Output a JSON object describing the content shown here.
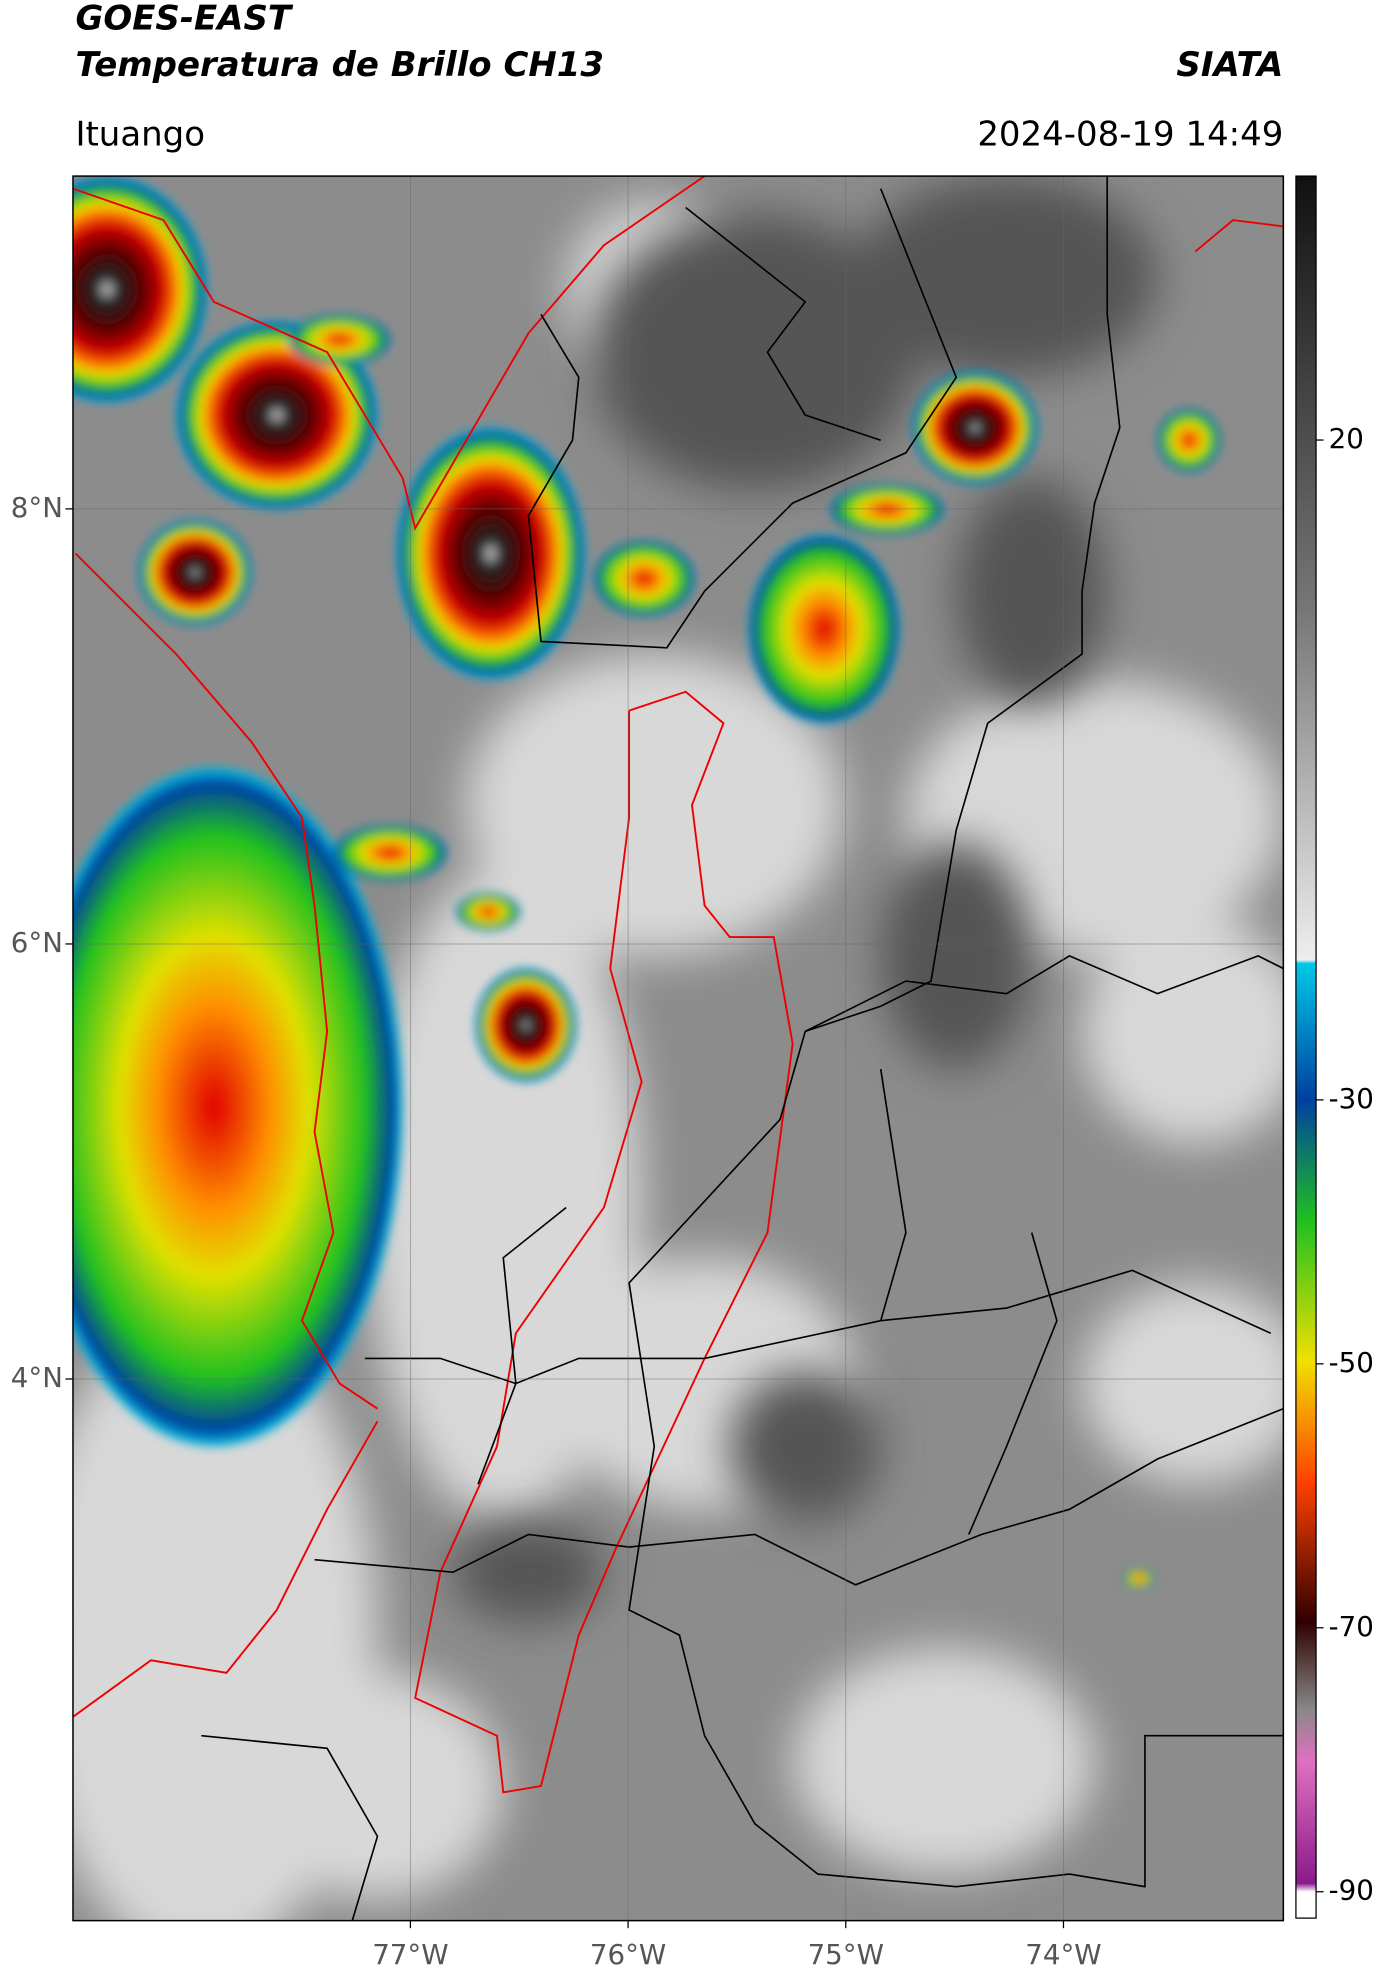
{
  "header": {
    "satellite": "GOES-EAST",
    "product": "Temperatura de Brillo CH13",
    "org": "SIATA",
    "region": "Ituango",
    "datetime": "2024-08-19 14:49"
  },
  "map": {
    "xlim": [
      -78.55,
      -72.99
    ],
    "ylim": [
      1.51,
      9.53
    ],
    "xticks": [
      {
        "value": -77,
        "label": "77°W"
      },
      {
        "value": -76,
        "label": "76°W"
      },
      {
        "value": -75,
        "label": "75°W"
      },
      {
        "value": -74,
        "label": "74°W"
      }
    ],
    "yticks": [
      {
        "value": 8,
        "label": "8°N"
      },
      {
        "value": 6,
        "label": "6°N"
      },
      {
        "value": 4,
        "label": "4°N"
      }
    ],
    "grid": true
  },
  "colorbar": {
    "ylim": [
      -92,
      40
    ],
    "ticks": [
      20,
      -30,
      -50,
      -70,
      -90
    ]
  }
}
